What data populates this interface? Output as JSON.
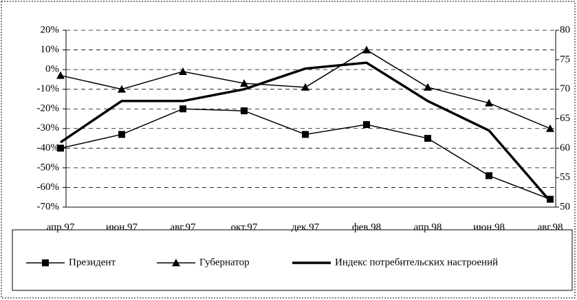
{
  "chart_data": {
    "type": "line",
    "categories": [
      "апр.97",
      "июн.97",
      "авг.97",
      "окт.97",
      "дек.97",
      "фев.98",
      "апр.98",
      "июн.98",
      "авг.98"
    ],
    "series": [
      {
        "name": "Президент",
        "color": "#000000",
        "marker": "square",
        "values": [
          -40,
          -33,
          -20,
          -21,
          -33,
          -28,
          -35,
          -54,
          -66
        ]
      },
      {
        "name": "Губернатор",
        "color": "#000000",
        "marker": "triangle",
        "values": [
          -3,
          -10,
          -1,
          -7,
          -9,
          10,
          -9,
          -17,
          -30
        ]
      },
      {
        "name": "Индекс потребительских настроений",
        "color": "#000000",
        "axis": "y2",
        "values": [
          61,
          68,
          68,
          70,
          73.5,
          74.5,
          68,
          63,
          51
        ]
      }
    ],
    "ylim": [
      -70,
      20
    ],
    "yticks": [
      {
        "value": -70,
        "label": "-70%"
      },
      {
        "value": -60,
        "label": "-60%"
      },
      {
        "value": -50,
        "label": "-50%"
      },
      {
        "value": -40,
        "label": "-40%"
      },
      {
        "value": -30,
        "label": "-30%"
      },
      {
        "value": -20,
        "label": "-20%"
      },
      {
        "value": -10,
        "label": "-10%"
      },
      {
        "value": 0,
        "label": "0%"
      },
      {
        "value": 10,
        "label": "10%"
      },
      {
        "value": 20,
        "label": "20%"
      }
    ],
    "y2lim": [
      50,
      80
    ],
    "y2ticks": [
      50,
      55,
      60,
      65,
      70,
      75,
      80
    ],
    "grid": true
  }
}
